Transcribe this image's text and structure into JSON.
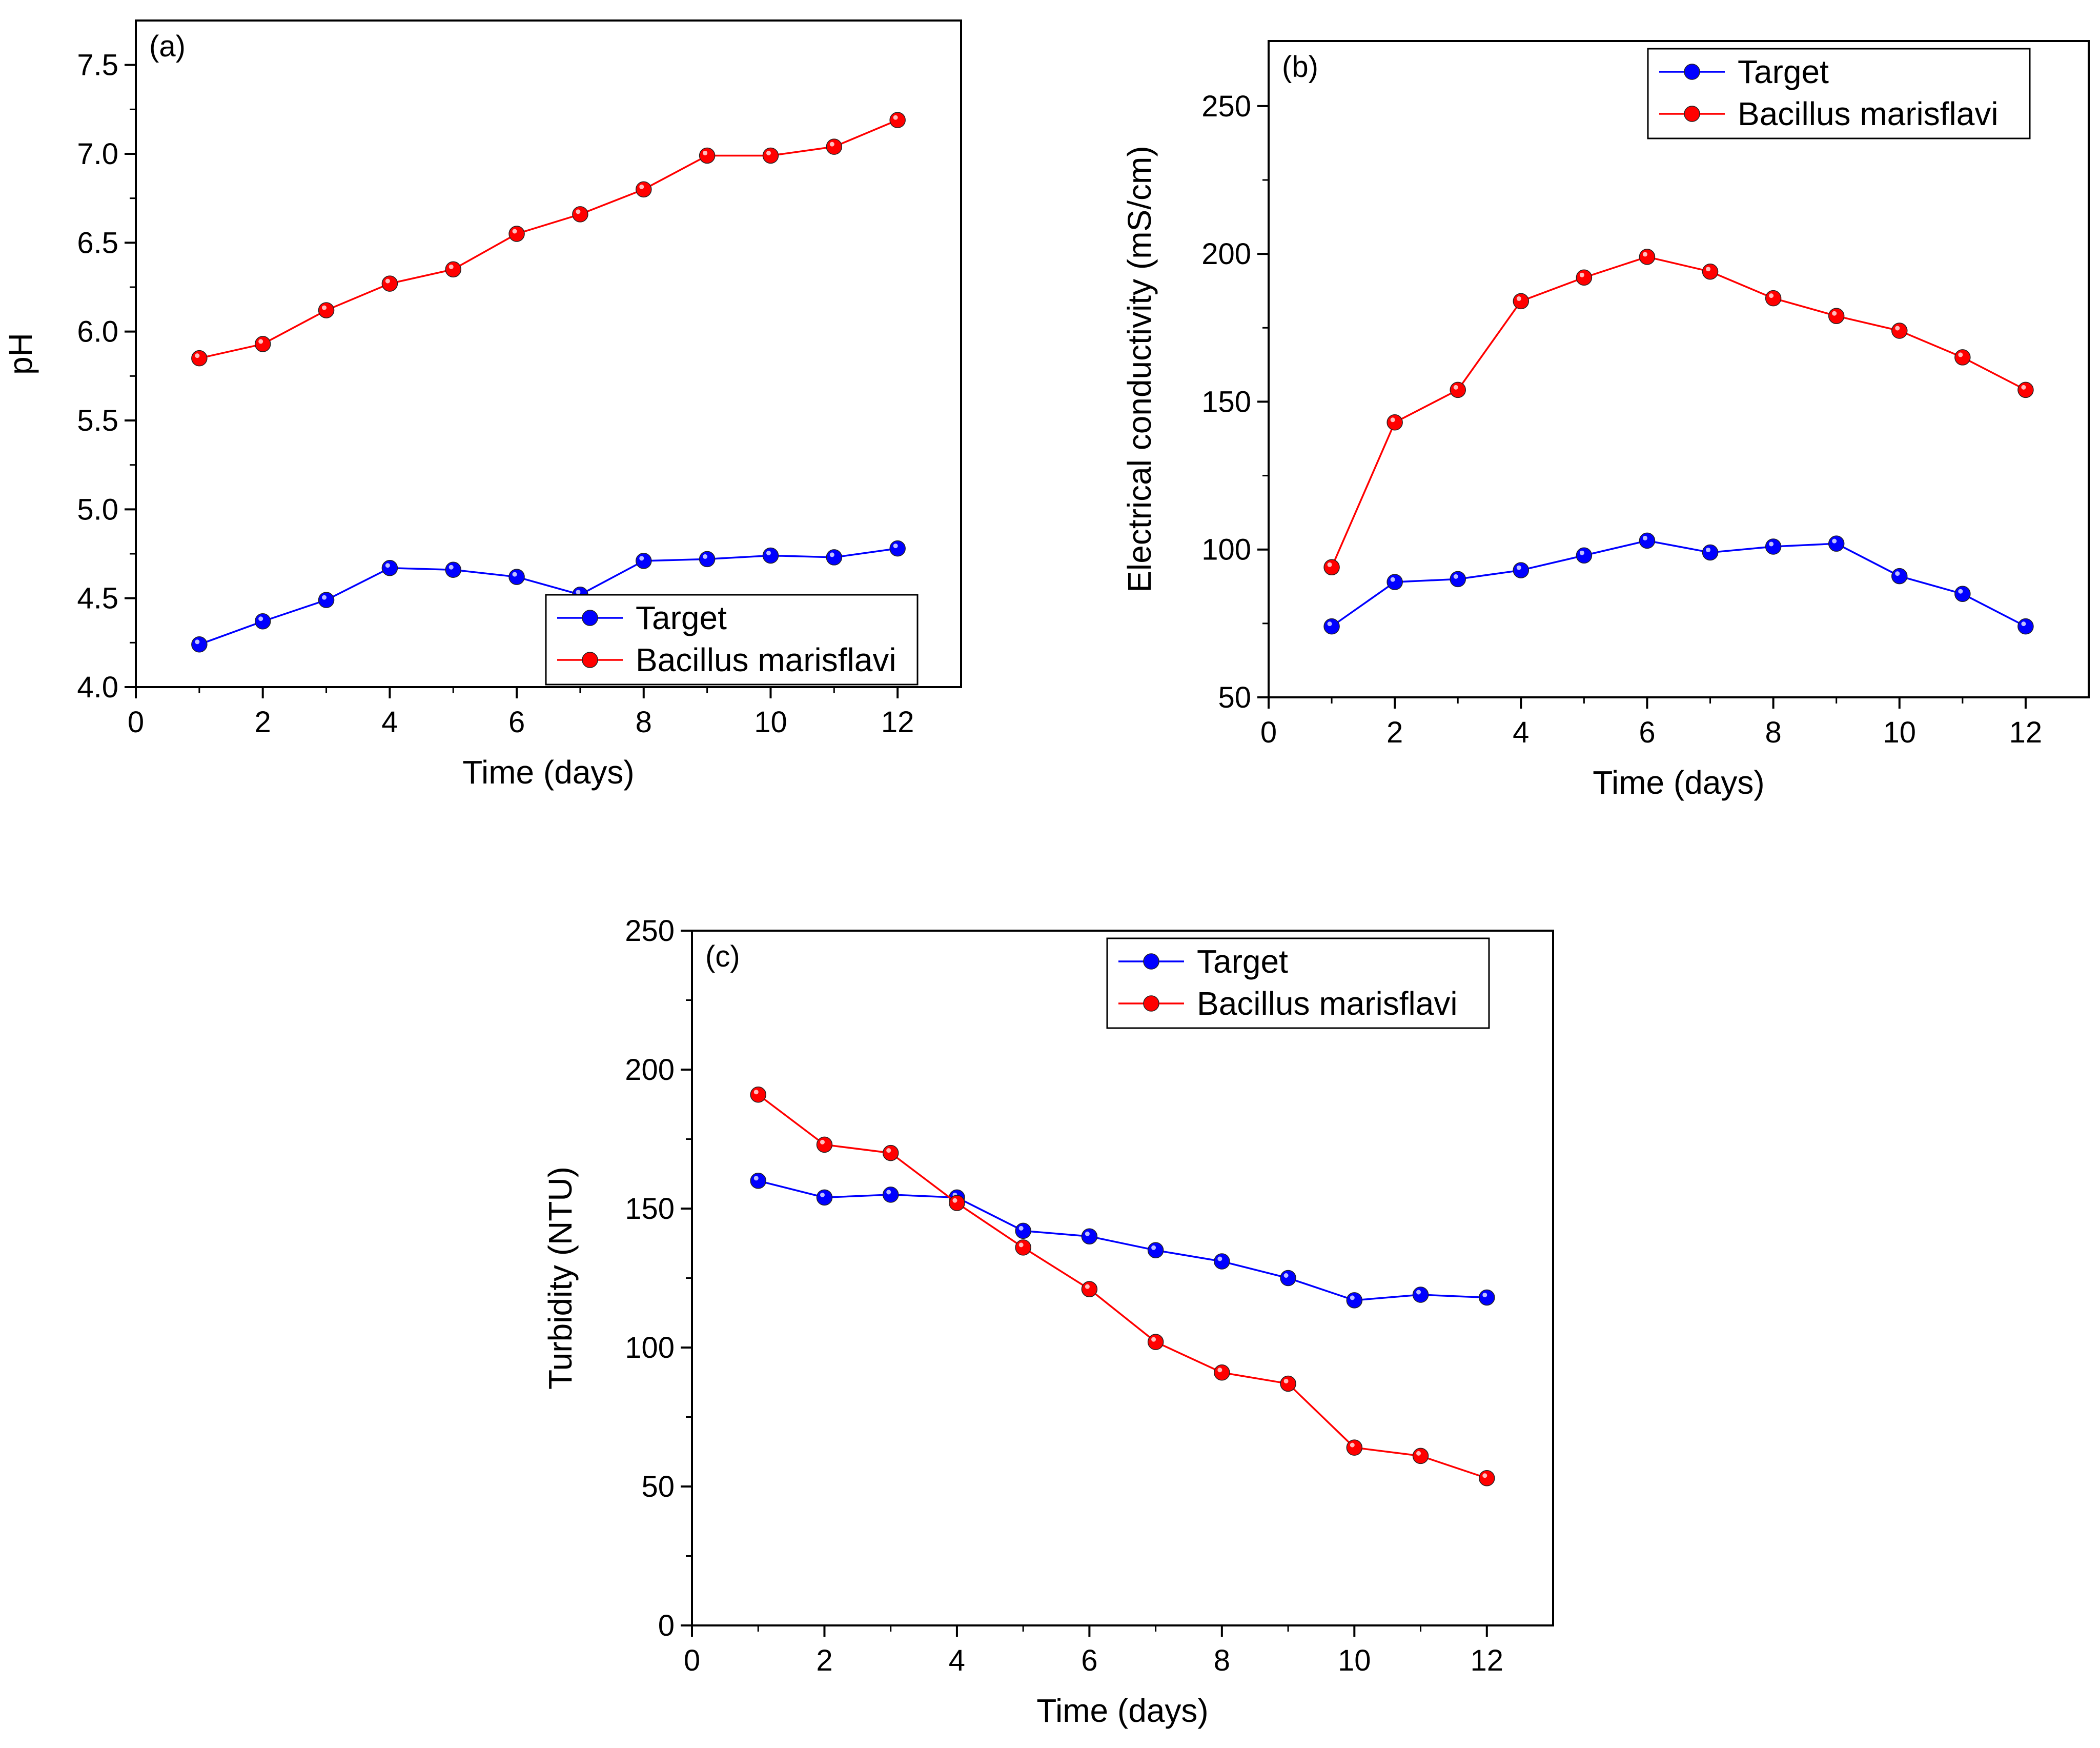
{
  "chart_data": [
    {
      "type": "line",
      "panel": "(a)",
      "xlabel": "Time (days)",
      "ylabel": "pH",
      "xlim": [
        0,
        13
      ],
      "ylim": [
        4.0,
        7.75
      ],
      "xticks": [
        0,
        2,
        4,
        6,
        8,
        10,
        12
      ],
      "yticks": [
        4.0,
        4.5,
        5.0,
        5.5,
        6.0,
        6.5,
        7.0,
        7.5
      ],
      "ytick_decimals": 1,
      "legend_position": "bottom-right",
      "x": [
        1,
        2,
        3,
        4,
        5,
        6,
        7,
        8,
        9,
        10,
        11,
        12
      ],
      "series": [
        {
          "name": "Target",
          "color": "#0000ff",
          "values": [
            4.24,
            4.37,
            4.49,
            4.67,
            4.66,
            4.62,
            4.52,
            4.71,
            4.72,
            4.74,
            4.73,
            4.78
          ]
        },
        {
          "name": "Bacillus marisflavi",
          "color": "#ff0000",
          "values": [
            5.85,
            5.93,
            6.12,
            6.27,
            6.35,
            6.55,
            6.66,
            6.8,
            6.99,
            6.99,
            7.04,
            7.19
          ]
        }
      ]
    },
    {
      "type": "line",
      "panel": "(b)",
      "xlabel": "Time (days)",
      "ylabel": "Electrical conductivity (mS/cm)",
      "xlim": [
        0,
        13
      ],
      "ylim": [
        50,
        272
      ],
      "xticks": [
        0,
        2,
        4,
        6,
        8,
        10,
        12
      ],
      "yticks": [
        50,
        100,
        150,
        200,
        250
      ],
      "ytick_decimals": 0,
      "legend_position": "top-right",
      "x": [
        1,
        2,
        3,
        4,
        5,
        6,
        7,
        8,
        9,
        10,
        11,
        12
      ],
      "series": [
        {
          "name": "Target",
          "color": "#0000ff",
          "values": [
            74,
            89,
            90,
            93,
            98,
            103,
            99,
            101,
            102,
            91,
            85,
            74
          ]
        },
        {
          "name": "Bacillus marisflavi",
          "color": "#ff0000",
          "values": [
            94,
            143,
            154,
            184,
            192,
            199,
            194,
            185,
            179,
            174,
            165,
            154
          ]
        }
      ]
    },
    {
      "type": "line",
      "panel": "(c)",
      "xlabel": "Time (days)",
      "ylabel": "Turbidity (NTU)",
      "xlim": [
        0,
        13
      ],
      "ylim": [
        0,
        250
      ],
      "xticks": [
        0,
        2,
        4,
        6,
        8,
        10,
        12
      ],
      "yticks": [
        0,
        50,
        100,
        150,
        200,
        250
      ],
      "ytick_decimals": 0,
      "legend_position": "top-right",
      "x": [
        1,
        2,
        3,
        4,
        5,
        6,
        7,
        8,
        9,
        10,
        11,
        12
      ],
      "series": [
        {
          "name": "Target",
          "color": "#0000ff",
          "values": [
            160,
            154,
            155,
            154,
            142,
            140,
            135,
            131,
            125,
            117,
            119,
            118
          ]
        },
        {
          "name": "Bacillus marisflavi",
          "color": "#ff0000",
          "values": [
            191,
            173,
            170,
            152,
            136,
            121,
            102,
            91,
            87,
            64,
            61,
            53
          ]
        }
      ]
    }
  ]
}
